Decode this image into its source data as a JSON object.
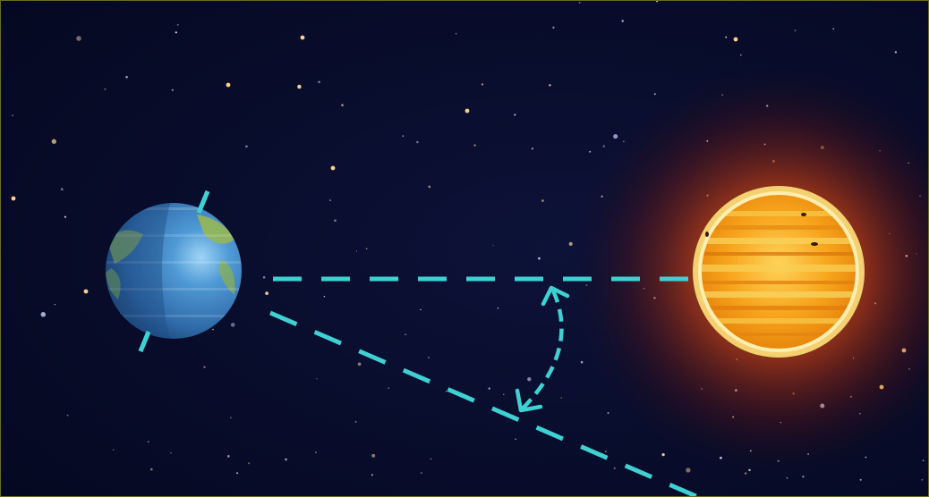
{
  "scene": {
    "description_free": true,
    "colors": {
      "space_bg": "#050a24",
      "space_bg_inner": "#0b1036",
      "frame": "#6b6a2a",
      "guide_line": "#3fd0d2",
      "sun_core": "#f7a51c",
      "sun_band": "#f3c23a",
      "sun_glow": "#ff5a00",
      "earth_ocean": "#3f86c4",
      "earth_land": "#8fb04a",
      "earth_shadow": "#2a5a8c",
      "axis": "#3fd0d2"
    },
    "icons": {
      "earth": "earth-icon",
      "sun": "sun-icon",
      "angle_arrow": "double-headed-arc-arrow-icon"
    }
  }
}
